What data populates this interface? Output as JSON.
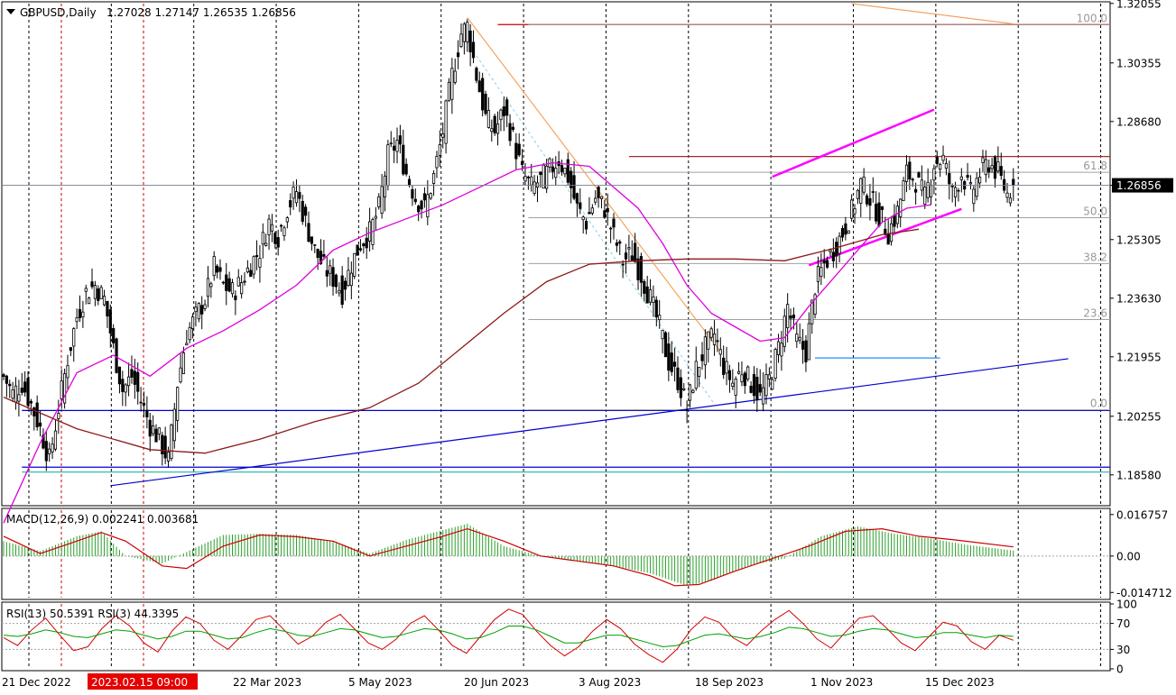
{
  "header": {
    "symbol": "GBPUSD,Daily",
    "ohlc": "1.27028 1.27147 1.26535 1.26856"
  },
  "chart_data": [
    {
      "type": "candlestick",
      "symbol": "GBPUSD",
      "timeframe": "Daily",
      "ohlc_last": {
        "open": 1.27028,
        "high": 1.27147,
        "low": 1.26535,
        "close": 1.26856
      },
      "current_price": "1.26856",
      "price_range": [
        1.1775,
        1.3205
      ],
      "y_ticks": [
        "1.32055",
        "1.30355",
        "1.28680",
        "1.26856",
        "1.25305",
        "1.23630",
        "1.21955",
        "1.20255",
        "1.18580"
      ],
      "x_labels": [
        "21 Dec 2022",
        "2023.02.15 09:00",
        "22 Mar 2023",
        "5 May 2023",
        "20 Jun 2023",
        "3 Aug 2023",
        "18 Sep 2023",
        "1 Nov 2023",
        "15 Dec 2023"
      ],
      "price_path": [
        [
          0,
          1.214
        ],
        [
          3,
          1.209
        ],
        [
          6,
          1.212
        ],
        [
          9,
          1.206
        ],
        [
          12,
          1.199
        ],
        [
          15,
          1.19
        ],
        [
          18,
          1.205
        ],
        [
          21,
          1.219
        ],
        [
          24,
          1.231
        ],
        [
          27,
          1.238
        ],
        [
          30,
          1.24
        ],
        [
          33,
          1.236
        ],
        [
          36,
          1.222
        ],
        [
          39,
          1.21
        ],
        [
          42,
          1.214
        ],
        [
          45,
          1.207
        ],
        [
          48,
          1.2
        ],
        [
          51,
          1.196
        ],
        [
          54,
          1.19
        ],
        [
          57,
          1.212
        ],
        [
          60,
          1.226
        ],
        [
          63,
          1.231
        ],
        [
          66,
          1.236
        ],
        [
          69,
          1.245
        ],
        [
          72,
          1.24
        ],
        [
          75,
          1.238
        ],
        [
          78,
          1.241
        ],
        [
          81,
          1.246
        ],
        [
          84,
          1.25
        ],
        [
          87,
          1.258
        ],
        [
          90,
          1.254
        ],
        [
          93,
          1.262
        ],
        [
          96,
          1.267
        ],
        [
          99,
          1.258
        ],
        [
          102,
          1.25
        ],
        [
          105,
          1.245
        ],
        [
          108,
          1.242
        ],
        [
          111,
          1.238
        ],
        [
          114,
          1.246
        ],
        [
          117,
          1.252
        ],
        [
          120,
          1.255
        ],
        [
          123,
          1.262
        ],
        [
          126,
          1.277
        ],
        [
          129,
          1.281
        ],
        [
          132,
          1.272
        ],
        [
          135,
          1.265
        ],
        [
          138,
          1.262
        ],
        [
          141,
          1.271
        ],
        [
          144,
          1.284
        ],
        [
          147,
          1.3
        ],
        [
          150,
          1.312
        ],
        [
          152,
          1.314
        ],
        [
          155,
          1.3
        ],
        [
          158,
          1.288
        ],
        [
          161,
          1.284
        ],
        [
          164,
          1.29
        ],
        [
          167,
          1.282
        ],
        [
          170,
          1.272
        ],
        [
          173,
          1.268
        ],
        [
          176,
          1.27
        ],
        [
          179,
          1.273
        ],
        [
          182,
          1.276
        ],
        [
          185,
          1.271
        ],
        [
          188,
          1.262
        ],
        [
          191,
          1.258
        ],
        [
          194,
          1.265
        ],
        [
          197,
          1.262
        ],
        [
          200,
          1.254
        ],
        [
          203,
          1.247
        ],
        [
          206,
          1.249
        ],
        [
          209,
          1.243
        ],
        [
          212,
          1.236
        ],
        [
          215,
          1.228
        ],
        [
          218,
          1.218
        ],
        [
          221,
          1.213
        ],
        [
          224,
          1.205
        ],
        [
          227,
          1.216
        ],
        [
          230,
          1.222
        ],
        [
          233,
          1.226
        ],
        [
          236,
          1.217
        ],
        [
          239,
          1.212
        ],
        [
          242,
          1.216
        ],
        [
          245,
          1.212
        ],
        [
          248,
          1.208
        ],
        [
          251,
          1.213
        ],
        [
          254,
          1.222
        ],
        [
          257,
          1.234
        ],
        [
          260,
          1.224
        ],
        [
          263,
          1.221
        ],
        [
          266,
          1.24
        ],
        [
          269,
          1.246
        ],
        [
          272,
          1.25
        ],
        [
          275,
          1.255
        ],
        [
          278,
          1.261
        ],
        [
          281,
          1.269
        ],
        [
          284,
          1.265
        ],
        [
          287,
          1.26
        ],
        [
          290,
          1.255
        ],
        [
          293,
          1.261
        ],
        [
          296,
          1.272
        ],
        [
          299,
          1.27
        ],
        [
          302,
          1.265
        ],
        [
          305,
          1.275
        ],
        [
          308,
          1.276
        ],
        [
          311,
          1.266
        ],
        [
          314,
          1.272
        ],
        [
          317,
          1.266
        ],
        [
          320,
          1.272
        ],
        [
          323,
          1.275
        ],
        [
          326,
          1.272
        ],
        [
          329,
          1.266
        ],
        [
          331,
          1.2686
        ]
      ],
      "fibonacci": [
        {
          "label": "100.0",
          "price": 1.3145
        },
        {
          "label": "61.8",
          "price": 1.2723
        },
        {
          "label": "50.0",
          "price": 1.2593
        },
        {
          "label": "38.2",
          "price": 1.2462
        },
        {
          "label": "23.6",
          "price": 1.2302
        },
        {
          "label": "0.0",
          "price": 1.2044
        }
      ],
      "horizontal_levels": [
        {
          "price": 1.3145,
          "color": "#cc0000"
        },
        {
          "price": 1.2768,
          "color": "#a52a2a"
        },
        {
          "price": 1.2192,
          "color": "#1e90ff"
        },
        {
          "price": 1.2042,
          "color": "#0000cd"
        },
        {
          "price": 1.188,
          "color": "#0000cd"
        },
        {
          "price": 1.1866,
          "color": "#20b2aa"
        }
      ],
      "trendlines": [
        {
          "from": [
            35,
            1.1827
          ],
          "to": [
            349,
            1.219
          ],
          "color": "#0000cd"
        },
        {
          "from": [
            252,
            1.271
          ],
          "to": [
            305,
            1.2902
          ],
          "color": "#ff00ff"
        },
        {
          "from": [
            264,
            1.2457
          ],
          "to": [
            314,
            1.2618
          ],
          "color": "#ff00ff"
        },
        {
          "from": [
            152,
            1.3165
          ],
          "to": [
            235,
            1.221
          ],
          "color": "#f4a460"
        },
        {
          "from": [
            278,
            1.3205
          ],
          "to": [
            331,
            1.3147
          ],
          "color": "#f4a460"
        }
      ],
      "moving_averages": [
        {
          "name": "MA short",
          "color": "#dd00dd",
          "points": [
            [
              0,
              1.172
            ],
            [
              12,
              1.195
            ],
            [
              24,
              1.215
            ],
            [
              36,
              1.22
            ],
            [
              48,
              1.214
            ],
            [
              60,
              1.222
            ],
            [
              72,
              1.227
            ],
            [
              84,
              1.233
            ],
            [
              96,
              1.24
            ],
            [
              108,
              1.25
            ],
            [
              120,
              1.255
            ],
            [
              132,
              1.259
            ],
            [
              144,
              1.263
            ],
            [
              156,
              1.268
            ],
            [
              168,
              1.273
            ],
            [
              180,
              1.275
            ],
            [
              192,
              1.274
            ],
            [
              200,
              1.268
            ],
            [
              208,
              1.262
            ],
            [
              216,
              1.252
            ],
            [
              224,
              1.24
            ],
            [
              232,
              1.232
            ],
            [
              240,
              1.228
            ],
            [
              248,
              1.224
            ],
            [
              256,
              1.225
            ],
            [
              264,
              1.234
            ],
            [
              272,
              1.242
            ],
            [
              280,
              1.25
            ],
            [
              288,
              1.258
            ],
            [
              296,
              1.262
            ],
            [
              304,
              1.263
            ]
          ]
        },
        {
          "name": "MA long",
          "color": "#8b1a1a",
          "points": [
            [
              0,
              1.208
            ],
            [
              24,
              1.199
            ],
            [
              48,
              1.193
            ],
            [
              66,
              1.192
            ],
            [
              84,
              1.196
            ],
            [
              102,
              1.201
            ],
            [
              120,
              1.205
            ],
            [
              136,
              1.212
            ],
            [
              150,
              1.222
            ],
            [
              164,
              1.232
            ],
            [
              178,
              1.241
            ],
            [
              192,
              1.246
            ],
            [
              208,
              1.247
            ],
            [
              224,
              1.2475
            ],
            [
              240,
              1.2475
            ],
            [
              256,
              1.247
            ],
            [
              272,
              1.2505
            ],
            [
              288,
              1.2545
            ],
            [
              300,
              1.256
            ]
          ]
        }
      ]
    },
    {
      "type": "bar",
      "indicator": "MACD",
      "label": "MACD(12,26,9) 0.002241 0.003681",
      "y_ticks": [
        "0.016757",
        "0.00",
        "-0.014712"
      ],
      "ylim": [
        -0.0168,
        0.0185
      ],
      "histogram": [
        [
          0,
          0.006
        ],
        [
          12,
          0.002
        ],
        [
          24,
          0.008
        ],
        [
          32,
          0.01
        ],
        [
          40,
          0.0
        ],
        [
          52,
          -0.003
        ],
        [
          64,
          0.004
        ],
        [
          72,
          0.0085
        ],
        [
          84,
          0.009
        ],
        [
          96,
          0.0085
        ],
        [
          108,
          0.006
        ],
        [
          120,
          0.001
        ],
        [
          132,
          0.0065
        ],
        [
          144,
          0.0105
        ],
        [
          152,
          0.013
        ],
        [
          164,
          0.004
        ],
        [
          176,
          0.0
        ],
        [
          188,
          -0.002
        ],
        [
          200,
          -0.004
        ],
        [
          212,
          -0.007
        ],
        [
          224,
          -0.012
        ],
        [
          232,
          -0.01
        ],
        [
          244,
          -0.004
        ],
        [
          256,
          -0.001
        ],
        [
          268,
          0.008
        ],
        [
          280,
          0.012
        ],
        [
          292,
          0.009
        ],
        [
          304,
          0.007
        ],
        [
          316,
          0.0045
        ],
        [
          331,
          0.0022
        ]
      ],
      "signal": [
        [
          0,
          0.008
        ],
        [
          12,
          0.001
        ],
        [
          24,
          0.006
        ],
        [
          32,
          0.0095
        ],
        [
          40,
          0.006
        ],
        [
          52,
          -0.004
        ],
        [
          60,
          -0.005
        ],
        [
          72,
          0.004
        ],
        [
          84,
          0.0085
        ],
        [
          96,
          0.0078
        ],
        [
          108,
          0.006
        ],
        [
          120,
          0.0
        ],
        [
          132,
          0.004
        ],
        [
          144,
          0.008
        ],
        [
          152,
          0.011
        ],
        [
          164,
          0.006
        ],
        [
          176,
          0.0
        ],
        [
          188,
          -0.002
        ],
        [
          200,
          -0.004
        ],
        [
          212,
          -0.008
        ],
        [
          220,
          -0.012
        ],
        [
          228,
          -0.0115
        ],
        [
          240,
          -0.006
        ],
        [
          252,
          -0.001
        ],
        [
          264,
          0.004
        ],
        [
          276,
          0.01
        ],
        [
          288,
          0.011
        ],
        [
          300,
          0.008
        ],
        [
          312,
          0.0065
        ],
        [
          331,
          0.0037
        ]
      ]
    },
    {
      "type": "line",
      "indicator": "RSI",
      "label": "RSI(13) 50.5391 RSI(3) 44.3395",
      "y_ticks": [
        "100",
        "70",
        "30",
        "0"
      ],
      "ylim": [
        0,
        100
      ],
      "series": [
        {
          "color": "#d40000",
          "values": [
            48,
            36,
            60,
            78,
            52,
            28,
            34,
            62,
            82,
            66,
            40,
            26,
            58,
            80,
            70,
            44,
            30,
            52,
            76,
            82,
            60,
            38,
            50,
            72,
            84,
            62,
            40,
            30,
            46,
            70,
            82,
            60,
            36,
            24,
            50,
            76,
            92,
            84,
            58,
            36,
            20,
            34,
            58,
            76,
            62,
            38,
            22,
            10,
            30,
            60,
            80,
            72,
            48,
            36,
            58,
            76,
            90,
            70,
            46,
            32,
            56,
            78,
            82,
            62,
            40,
            28,
            50,
            72,
            66,
            42,
            30,
            52,
            44
          ]
        },
        {
          "color": "#00a000",
          "values": [
            52,
            50,
            54,
            60,
            56,
            50,
            48,
            54,
            60,
            58,
            52,
            46,
            50,
            58,
            58,
            52,
            46,
            48,
            56,
            62,
            58,
            52,
            50,
            56,
            62,
            60,
            54,
            48,
            50,
            56,
            62,
            60,
            54,
            46,
            48,
            56,
            66,
            66,
            60,
            50,
            40,
            40,
            46,
            52,
            52,
            46,
            40,
            34,
            36,
            44,
            52,
            54,
            50,
            46,
            50,
            56,
            64,
            62,
            56,
            50,
            52,
            58,
            62,
            60,
            54,
            48,
            50,
            56,
            56,
            52,
            48,
            52,
            50
          ]
        }
      ]
    }
  ]
}
